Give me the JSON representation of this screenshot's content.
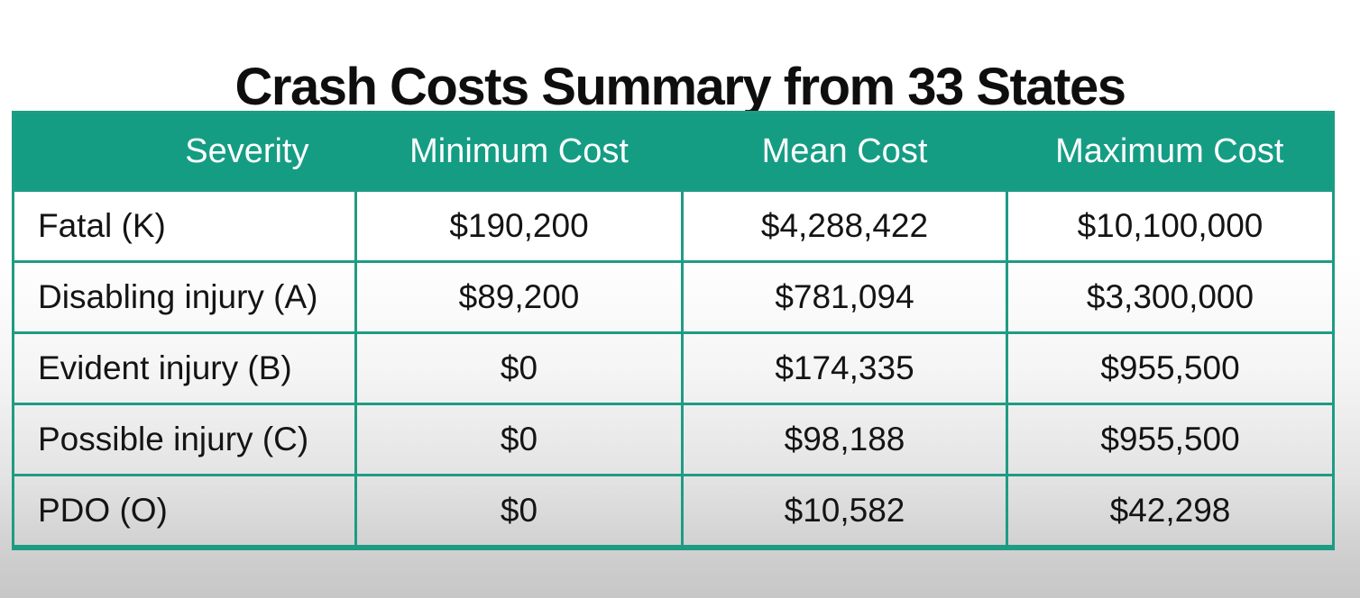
{
  "title": "Crash Costs Summary from 33 States",
  "table": {
    "columns": [
      "Severity",
      "Minimum Cost",
      "Mean Cost",
      "Maximum Cost"
    ],
    "rows": [
      {
        "severity": "Fatal (K)",
        "min": "$190,200",
        "mean": "$4,288,422",
        "max": "$10,100,000"
      },
      {
        "severity": "Disabling injury (A)",
        "min": "$89,200",
        "mean": "$781,094",
        "max": "$3,300,000"
      },
      {
        "severity": "Evident injury (B)",
        "min": "$0",
        "mean": "$174,335",
        "max": "$955,500"
      },
      {
        "severity": "Possible injury (C)",
        "min": "$0",
        "mean": "$98,188",
        "max": "$955,500"
      },
      {
        "severity": "PDO (O)",
        "min": "$0",
        "mean": "$10,582",
        "max": "$42,298"
      }
    ]
  },
  "colors": {
    "header_bg": "#159d84",
    "border": "#1e9c83",
    "title_text": "#0e0e0e",
    "header_text": "#ffffff",
    "cell_text": "#141414",
    "page_bottom": "#c7c7c7"
  },
  "chart_data": {
    "type": "table",
    "title": "Crash Costs Summary from 33 States",
    "categories": [
      "Fatal (K)",
      "Disabling injury (A)",
      "Evident injury (B)",
      "Possible injury (C)",
      "PDO (O)"
    ],
    "series": [
      {
        "name": "Minimum Cost",
        "values": [
          190200,
          89200,
          0,
          0,
          0
        ]
      },
      {
        "name": "Mean Cost",
        "values": [
          4288422,
          781094,
          174335,
          98188,
          10582
        ]
      },
      {
        "name": "Maximum Cost",
        "values": [
          10100000,
          3300000,
          955500,
          955500,
          42298
        ]
      }
    ]
  }
}
